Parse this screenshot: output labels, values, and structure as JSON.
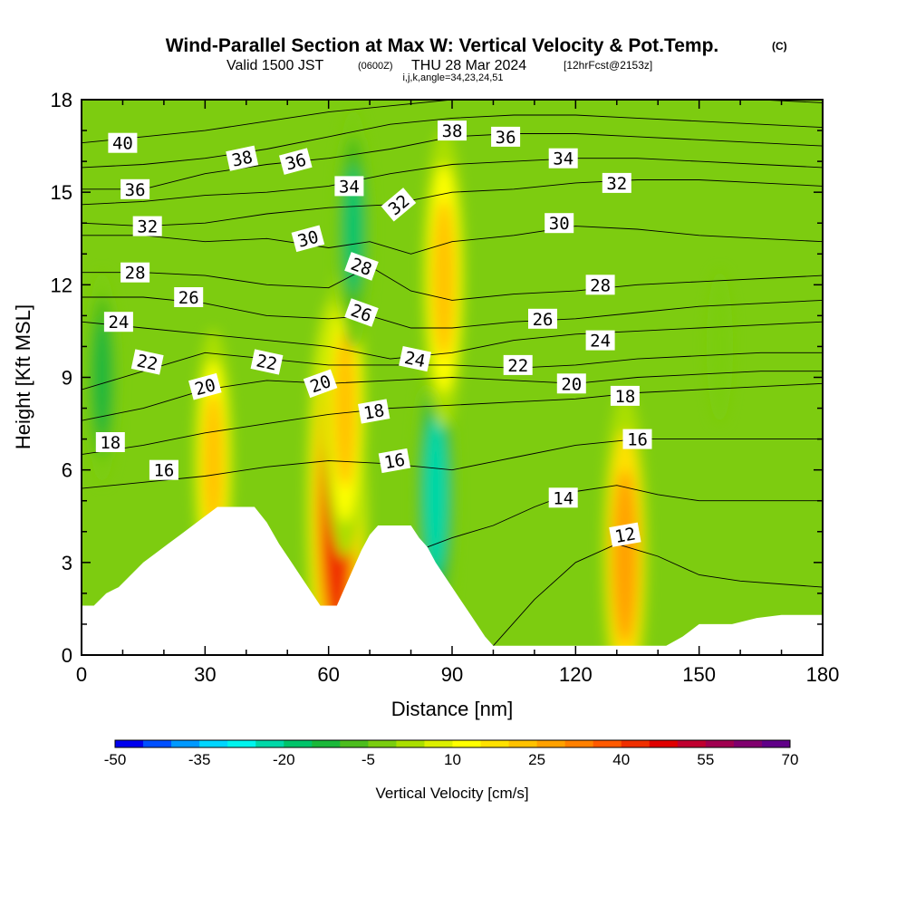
{
  "title": {
    "main": "Wind-Parallel Section at Max W: Vertical Velocity & Pot.Temp.",
    "copyright": "(C)",
    "valid_prefix": "Valid 1500 JST",
    "utc": "(0600Z)",
    "valid_date": "THU 28 Mar 2024",
    "forecast": "[12hrFcst@2153z]",
    "indices": "i,j,k,angle=34,23,24,51"
  },
  "chart_data": {
    "type": "heatmap",
    "xlabel": "Distance [nm]",
    "ylabel": "Height [Kft MSL]",
    "xlim": [
      0,
      180
    ],
    "ylim": [
      0,
      18
    ],
    "x_ticks": [
      0,
      30,
      60,
      90,
      120,
      150,
      180
    ],
    "y_ticks": [
      0,
      3,
      6,
      9,
      12,
      15,
      18
    ],
    "colorbar": {
      "label": "Vertical Velocity [cm/s]",
      "range": [
        -50,
        70
      ],
      "step": 5,
      "tick_values": [
        -50,
        -35,
        -20,
        -5,
        10,
        25,
        40,
        55,
        70
      ],
      "colors": [
        "#0000ee",
        "#0050ff",
        "#0099ff",
        "#00d6ff",
        "#00f5ee",
        "#00d8a8",
        "#00c46a",
        "#1ab83a",
        "#4cbd1d",
        "#7acd0f",
        "#aadf00",
        "#dcf000",
        "#ffff00",
        "#ffe100",
        "#ffc200",
        "#ffa100",
        "#ff8000",
        "#ff5a00",
        "#f03000",
        "#e00000",
        "#c00030",
        "#a00050",
        "#80006e",
        "#600088"
      ]
    },
    "field_samples": [
      {
        "x": 32,
        "y": 6.2,
        "w": 25
      },
      {
        "x": 62,
        "y": 4.6,
        "w": 55
      },
      {
        "x": 64,
        "y": 8.0,
        "w": 30
      },
      {
        "x": 86,
        "y": 5.2,
        "w": -30
      },
      {
        "x": 66,
        "y": 13.8,
        "w": -20
      },
      {
        "x": 88,
        "y": 12.2,
        "w": 30
      },
      {
        "x": 132,
        "y": 3.2,
        "w": 35
      },
      {
        "x": 5,
        "y": 9.0,
        "w": -15
      },
      {
        "x": 155,
        "y": 10.0,
        "w": -5
      }
    ],
    "terrain_nm_kft": [
      [
        0,
        1.6
      ],
      [
        3,
        1.6
      ],
      [
        6,
        2.0
      ],
      [
        9,
        2.2
      ],
      [
        12,
        2.6
      ],
      [
        15,
        3.0
      ],
      [
        18,
        3.3
      ],
      [
        21,
        3.6
      ],
      [
        24,
        3.9
      ],
      [
        27,
        4.2
      ],
      [
        30,
        4.5
      ],
      [
        33,
        4.8
      ],
      [
        42,
        4.8
      ],
      [
        45,
        4.3
      ],
      [
        48,
        3.6
      ],
      [
        51,
        3.0
      ],
      [
        54,
        2.4
      ],
      [
        56,
        2.0
      ],
      [
        58,
        1.6
      ],
      [
        62,
        1.6
      ],
      [
        64,
        2.2
      ],
      [
        66,
        2.8
      ],
      [
        68,
        3.4
      ],
      [
        70,
        3.9
      ],
      [
        72,
        4.2
      ],
      [
        80,
        4.2
      ],
      [
        82,
        3.8
      ],
      [
        84,
        3.5
      ],
      [
        86,
        3.0
      ],
      [
        88,
        2.6
      ],
      [
        90,
        2.2
      ],
      [
        92,
        1.8
      ],
      [
        94,
        1.4
      ],
      [
        96,
        1.0
      ],
      [
        98,
        0.6
      ],
      [
        100,
        0.3
      ],
      [
        142,
        0.3
      ],
      [
        146,
        0.6
      ],
      [
        150,
        1.0
      ],
      [
        158,
        1.0
      ],
      [
        164,
        1.2
      ],
      [
        170,
        1.3
      ],
      [
        180,
        1.3
      ]
    ],
    "theta_contours": [
      {
        "label": "12",
        "pts": [
          [
            100,
            0.3
          ],
          [
            110,
            1.8
          ],
          [
            120,
            3.0
          ],
          [
            130,
            3.6
          ],
          [
            140,
            3.2
          ],
          [
            150,
            2.6
          ],
          [
            160,
            2.4
          ],
          [
            180,
            2.2
          ]
        ]
      },
      {
        "label": "14",
        "pts": [
          [
            84,
            3.5
          ],
          [
            90,
            3.8
          ],
          [
            100,
            4.2
          ],
          [
            110,
            4.8
          ],
          [
            120,
            5.3
          ],
          [
            130,
            5.5
          ],
          [
            140,
            5.2
          ],
          [
            150,
            5.0
          ],
          [
            165,
            5.0
          ],
          [
            180,
            5.0
          ]
        ]
      },
      {
        "label": "16",
        "pts": [
          [
            0,
            5.4
          ],
          [
            15,
            5.6
          ],
          [
            30,
            5.8
          ],
          [
            45,
            6.1
          ],
          [
            60,
            6.3
          ],
          [
            75,
            6.2
          ],
          [
            90,
            6.0
          ],
          [
            105,
            6.4
          ],
          [
            120,
            6.8
          ],
          [
            135,
            7.0
          ],
          [
            150,
            7.0
          ],
          [
            165,
            7.0
          ],
          [
            180,
            7.0
          ]
        ]
      },
      {
        "label": "18",
        "pts": [
          [
            0,
            6.5
          ],
          [
            15,
            6.8
          ],
          [
            30,
            7.2
          ],
          [
            45,
            7.5
          ],
          [
            60,
            7.8
          ],
          [
            75,
            8.0
          ],
          [
            90,
            8.1
          ],
          [
            105,
            8.2
          ],
          [
            120,
            8.3
          ],
          [
            135,
            8.5
          ],
          [
            150,
            8.6
          ],
          [
            165,
            8.7
          ],
          [
            180,
            8.8
          ]
        ]
      },
      {
        "label": "20",
        "pts": [
          [
            0,
            7.6
          ],
          [
            15,
            8.0
          ],
          [
            30,
            8.6
          ],
          [
            45,
            8.9
          ],
          [
            60,
            8.8
          ],
          [
            75,
            8.9
          ],
          [
            90,
            9.0
          ],
          [
            105,
            8.9
          ],
          [
            120,
            8.8
          ],
          [
            135,
            9.0
          ],
          [
            150,
            9.1
          ],
          [
            165,
            9.2
          ],
          [
            180,
            9.2
          ]
        ]
      },
      {
        "label": "22",
        "pts": [
          [
            0,
            8.6
          ],
          [
            15,
            9.2
          ],
          [
            30,
            9.8
          ],
          [
            45,
            9.6
          ],
          [
            60,
            9.4
          ],
          [
            75,
            9.4
          ],
          [
            90,
            9.4
          ],
          [
            105,
            9.3
          ],
          [
            120,
            9.4
          ],
          [
            135,
            9.6
          ],
          [
            150,
            9.7
          ],
          [
            165,
            9.8
          ],
          [
            180,
            9.8
          ]
        ]
      },
      {
        "label": "24",
        "pts": [
          [
            0,
            10.8
          ],
          [
            15,
            10.6
          ],
          [
            30,
            10.4
          ],
          [
            45,
            10.2
          ],
          [
            60,
            10.0
          ],
          [
            75,
            9.6
          ],
          [
            90,
            9.8
          ],
          [
            105,
            10.2
          ],
          [
            120,
            10.4
          ],
          [
            135,
            10.5
          ],
          [
            150,
            10.6
          ],
          [
            165,
            10.7
          ],
          [
            180,
            10.8
          ]
        ]
      },
      {
        "label": "26",
        "pts": [
          [
            0,
            11.6
          ],
          [
            15,
            11.6
          ],
          [
            30,
            11.4
          ],
          [
            45,
            11.0
          ],
          [
            60,
            10.9
          ],
          [
            70,
            11.0
          ],
          [
            80,
            10.6
          ],
          [
            90,
            10.6
          ],
          [
            105,
            10.8
          ],
          [
            120,
            10.9
          ],
          [
            135,
            11.1
          ],
          [
            150,
            11.3
          ],
          [
            165,
            11.4
          ],
          [
            180,
            11.5
          ]
        ]
      },
      {
        "label": "28",
        "pts": [
          [
            0,
            12.4
          ],
          [
            15,
            12.4
          ],
          [
            30,
            12.3
          ],
          [
            45,
            12.0
          ],
          [
            60,
            11.9
          ],
          [
            70,
            12.6
          ],
          [
            80,
            11.8
          ],
          [
            90,
            11.5
          ],
          [
            105,
            11.7
          ],
          [
            120,
            11.8
          ],
          [
            135,
            12.0
          ],
          [
            150,
            12.1
          ],
          [
            165,
            12.2
          ],
          [
            180,
            12.3
          ]
        ]
      },
      {
        "label": "30",
        "pts": [
          [
            0,
            13.6
          ],
          [
            15,
            13.6
          ],
          [
            30,
            13.4
          ],
          [
            45,
            13.5
          ],
          [
            60,
            13.2
          ],
          [
            70,
            13.4
          ],
          [
            80,
            13.0
          ],
          [
            90,
            13.4
          ],
          [
            105,
            13.6
          ],
          [
            120,
            13.9
          ],
          [
            135,
            13.8
          ],
          [
            150,
            13.6
          ],
          [
            165,
            13.5
          ],
          [
            180,
            13.4
          ]
        ]
      },
      {
        "label": "32",
        "pts": [
          [
            0,
            14.0
          ],
          [
            15,
            13.9
          ],
          [
            30,
            14.0
          ],
          [
            45,
            14.3
          ],
          [
            60,
            14.5
          ],
          [
            75,
            14.6
          ],
          [
            90,
            15.0
          ],
          [
            105,
            15.1
          ],
          [
            120,
            15.3
          ],
          [
            135,
            15.4
          ],
          [
            150,
            15.4
          ],
          [
            165,
            15.3
          ],
          [
            180,
            15.2
          ]
        ]
      },
      {
        "label": "34",
        "pts": [
          [
            0,
            14.6
          ],
          [
            15,
            14.7
          ],
          [
            30,
            14.9
          ],
          [
            45,
            15.0
          ],
          [
            60,
            15.2
          ],
          [
            75,
            15.6
          ],
          [
            90,
            15.9
          ],
          [
            105,
            16.0
          ],
          [
            120,
            16.1
          ],
          [
            135,
            16.1
          ],
          [
            150,
            16.0
          ],
          [
            165,
            15.9
          ],
          [
            180,
            15.8
          ]
        ]
      },
      {
        "label": "36",
        "pts": [
          [
            0,
            15.1
          ],
          [
            15,
            15.1
          ],
          [
            30,
            15.6
          ],
          [
            45,
            15.9
          ],
          [
            60,
            16.1
          ],
          [
            75,
            16.4
          ],
          [
            90,
            16.8
          ],
          [
            105,
            16.9
          ],
          [
            120,
            16.9
          ],
          [
            135,
            16.8
          ],
          [
            150,
            16.7
          ],
          [
            165,
            16.6
          ],
          [
            180,
            16.5
          ]
        ]
      },
      {
        "label": "38",
        "pts": [
          [
            0,
            15.8
          ],
          [
            15,
            15.9
          ],
          [
            30,
            16.1
          ],
          [
            45,
            16.4
          ],
          [
            60,
            16.8
          ],
          [
            75,
            17.2
          ],
          [
            90,
            17.4
          ],
          [
            105,
            17.5
          ],
          [
            120,
            17.5
          ],
          [
            135,
            17.4
          ],
          [
            150,
            17.3
          ],
          [
            165,
            17.2
          ],
          [
            180,
            17.1
          ]
        ]
      },
      {
        "label": "40",
        "pts": [
          [
            0,
            16.6
          ],
          [
            15,
            16.8
          ],
          [
            30,
            17.0
          ],
          [
            45,
            17.3
          ],
          [
            60,
            17.6
          ],
          [
            75,
            17.8
          ],
          [
            90,
            18.0
          ],
          [
            105,
            18.0
          ],
          [
            120,
            18.0
          ],
          [
            135,
            18.0
          ],
          [
            150,
            18.0
          ],
          [
            165,
            18.0
          ],
          [
            180,
            17.9
          ]
        ]
      }
    ],
    "contour_labels": [
      {
        "text": "40",
        "x": 10,
        "y": 16.6,
        "rot": 0
      },
      {
        "text": "36",
        "x": 13,
        "y": 15.1,
        "rot": 0
      },
      {
        "text": "32",
        "x": 16,
        "y": 13.9,
        "rot": 0
      },
      {
        "text": "28",
        "x": 13,
        "y": 12.4,
        "rot": 0
      },
      {
        "text": "26",
        "x": 26,
        "y": 11.6,
        "rot": 0
      },
      {
        "text": "24",
        "x": 9,
        "y": 10.8,
        "rot": 0
      },
      {
        "text": "22",
        "x": 16,
        "y": 9.5,
        "rot": 12
      },
      {
        "text": "20",
        "x": 30,
        "y": 8.7,
        "rot": -15
      },
      {
        "text": "18",
        "x": 7,
        "y": 6.9,
        "rot": 0
      },
      {
        "text": "16",
        "x": 20,
        "y": 6.0,
        "rot": 0
      },
      {
        "text": "38",
        "x": 39,
        "y": 16.1,
        "rot": -12
      },
      {
        "text": "36",
        "x": 52,
        "y": 16.0,
        "rot": -15
      },
      {
        "text": "34",
        "x": 65,
        "y": 15.2,
        "rot": 0
      },
      {
        "text": "30",
        "x": 55,
        "y": 13.5,
        "rot": -15
      },
      {
        "text": "32",
        "x": 77,
        "y": 14.6,
        "rot": -40
      },
      {
        "text": "28",
        "x": 68,
        "y": 12.6,
        "rot": 20
      },
      {
        "text": "26",
        "x": 68,
        "y": 11.1,
        "rot": 20
      },
      {
        "text": "22",
        "x": 45,
        "y": 9.5,
        "rot": 12
      },
      {
        "text": "20",
        "x": 58,
        "y": 8.8,
        "rot": -20
      },
      {
        "text": "24",
        "x": 81,
        "y": 9.6,
        "rot": 12
      },
      {
        "text": "18",
        "x": 71,
        "y": 7.9,
        "rot": -10
      },
      {
        "text": "16",
        "x": 76,
        "y": 6.3,
        "rot": -10
      },
      {
        "text": "38",
        "x": 90,
        "y": 17.0,
        "rot": 0
      },
      {
        "text": "36",
        "x": 103,
        "y": 16.8,
        "rot": 0
      },
      {
        "text": "34",
        "x": 117,
        "y": 16.1,
        "rot": 0
      },
      {
        "text": "32",
        "x": 130,
        "y": 15.3,
        "rot": 0
      },
      {
        "text": "30",
        "x": 116,
        "y": 14.0,
        "rot": 0
      },
      {
        "text": "28",
        "x": 126,
        "y": 12.0,
        "rot": 0
      },
      {
        "text": "26",
        "x": 112,
        "y": 10.9,
        "rot": 0
      },
      {
        "text": "24",
        "x": 126,
        "y": 10.2,
        "rot": 0
      },
      {
        "text": "22",
        "x": 106,
        "y": 9.4,
        "rot": 0
      },
      {
        "text": "20",
        "x": 119,
        "y": 8.8,
        "rot": 0
      },
      {
        "text": "18",
        "x": 132,
        "y": 8.4,
        "rot": 0
      },
      {
        "text": "16",
        "x": 135,
        "y": 7.0,
        "rot": 0
      },
      {
        "text": "14",
        "x": 117,
        "y": 5.1,
        "rot": 0
      },
      {
        "text": "12",
        "x": 132,
        "y": 3.9,
        "rot": -10
      }
    ]
  }
}
